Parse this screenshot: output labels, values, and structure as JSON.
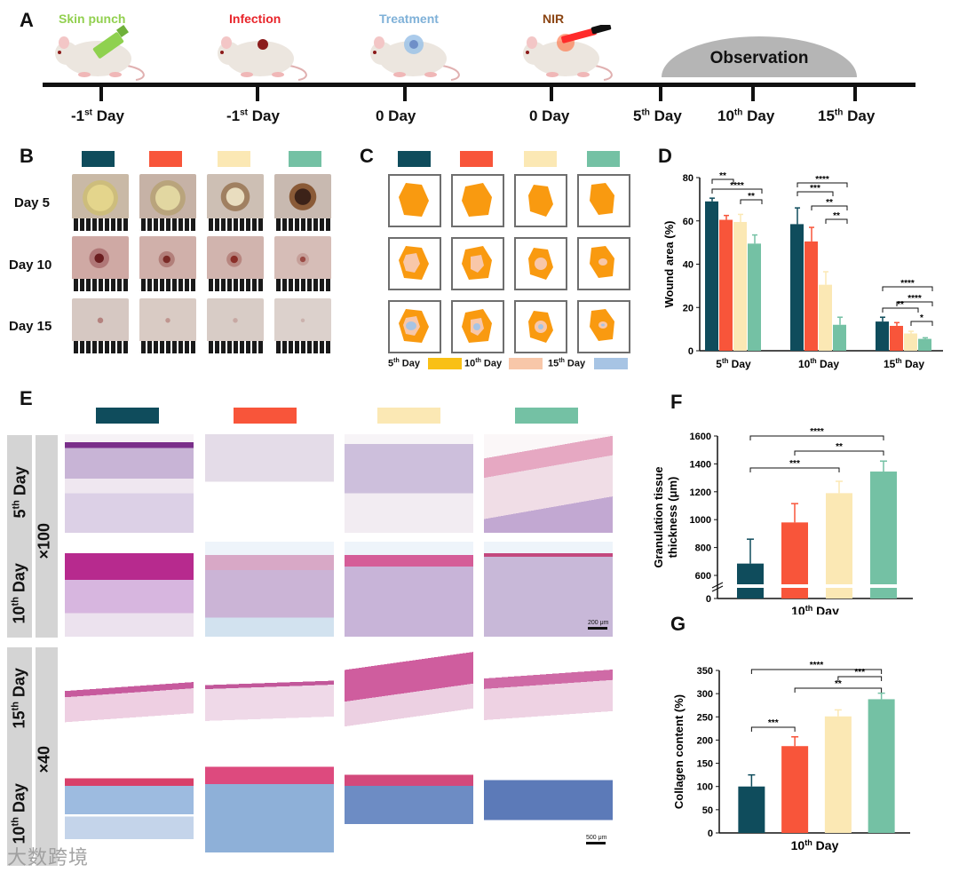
{
  "panels": {
    "a": "A",
    "b": "B",
    "c": "C",
    "d": "D",
    "e": "E",
    "f": "F",
    "g": "G"
  },
  "colors": {
    "group1": "#0f4c5c",
    "group2": "#f8553a",
    "group3": "#fbe8b4",
    "group4": "#74c1a4"
  },
  "timeline": {
    "steps": [
      "Skin punch",
      "Infection",
      "Treatment",
      "NIR"
    ],
    "observation": "Observation",
    "days": [
      {
        "num": "-1",
        "sup": "st",
        "word": " Day"
      },
      {
        "num": "-1",
        "sup": "st",
        "word": " Day"
      },
      {
        "num": "0 Day",
        "sup": "",
        "word": ""
      },
      {
        "num": "0 Day",
        "sup": "",
        "word": ""
      },
      {
        "num": "5",
        "sup": "th",
        "word": " Day"
      },
      {
        "num": "10",
        "sup": "th",
        "word": " Day"
      },
      {
        "num": "15",
        "sup": "th",
        "word": " Day"
      }
    ]
  },
  "panel_b": {
    "rows": [
      "Day 5",
      "Day 10",
      "Day 15"
    ]
  },
  "panel_c": {
    "legend": [
      {
        "num": "5",
        "sup": "th",
        "word": " Day"
      },
      {
        "num": "10",
        "sup": "th",
        "word": " Day"
      },
      {
        "num": "15",
        "sup": "th",
        "word": " Day"
      }
    ],
    "legend_colors": [
      "#f9c015",
      "#f8c7a9",
      "#a7c4e4"
    ]
  },
  "panel_e": {
    "rows": [
      {
        "num": "5",
        "sup": "th",
        "word": " Day"
      },
      {
        "num": "10",
        "sup": "th",
        "word": " Day"
      },
      {
        "num": "15",
        "sup": "th",
        "word": " Day"
      },
      {
        "num": "10",
        "sup": "th",
        "word": " Day"
      }
    ],
    "magnifications": [
      "×100",
      "×40"
    ],
    "scale_bars": [
      "200 μm",
      "500 μm"
    ]
  },
  "watermark": "大数跨境",
  "chart_data": [
    {
      "id": "D",
      "type": "bar",
      "categories": [
        "5th Day",
        "10th Day",
        "15th Day"
      ],
      "series": [
        {
          "name": "group1",
          "values": [
            69,
            58.5,
            13.5
          ],
          "errors": [
            1.5,
            7.5,
            2
          ]
        },
        {
          "name": "group2",
          "values": [
            60.5,
            50.5,
            11.5
          ],
          "errors": [
            2,
            6.5,
            1.5
          ]
        },
        {
          "name": "group3",
          "values": [
            59.5,
            30.5,
            8
          ],
          "errors": [
            3.5,
            6,
            1
          ]
        },
        {
          "name": "group4",
          "values": [
            49.5,
            12,
            5.5
          ],
          "errors": [
            4,
            3.5,
            0.5
          ]
        }
      ],
      "ylabel": "Wound area (%)",
      "ylim": [
        0,
        80
      ],
      "yticks": [
        0,
        20,
        40,
        60,
        80
      ],
      "significance": [
        "**",
        "****",
        "**",
        "***",
        "****",
        "**",
        "**",
        "****",
        "****",
        "**",
        "*"
      ]
    },
    {
      "id": "F",
      "type": "bar",
      "categories": [
        "group1",
        "group2",
        "group3",
        "group4"
      ],
      "values": [
        685,
        980,
        1190,
        1345
      ],
      "errors": [
        175,
        135,
        85,
        75
      ],
      "xlabel": {
        "num": "10",
        "sup": "th",
        "word": " Day"
      },
      "ylabel": [
        "Granulation tissue",
        "thickness (μm)"
      ],
      "ylim": [
        0,
        1600
      ],
      "yticks": [
        0,
        600,
        800,
        1000,
        1200,
        1400,
        1600
      ],
      "axis_break": true,
      "significance": [
        "****",
        "**",
        "***"
      ]
    },
    {
      "id": "G",
      "type": "bar",
      "categories": [
        "group1",
        "group2",
        "group3",
        "group4"
      ],
      "values": [
        100,
        187,
        251,
        288
      ],
      "errors": [
        25,
        20,
        14,
        13
      ],
      "xlabel": {
        "num": "10",
        "sup": "th",
        "word": " Day"
      },
      "ylabel": "Collagen content (%)",
      "ylim": [
        0,
        350
      ],
      "yticks": [
        0,
        50,
        100,
        150,
        200,
        250,
        300,
        350
      ],
      "significance": [
        "****",
        "***",
        "**",
        "***"
      ]
    }
  ]
}
